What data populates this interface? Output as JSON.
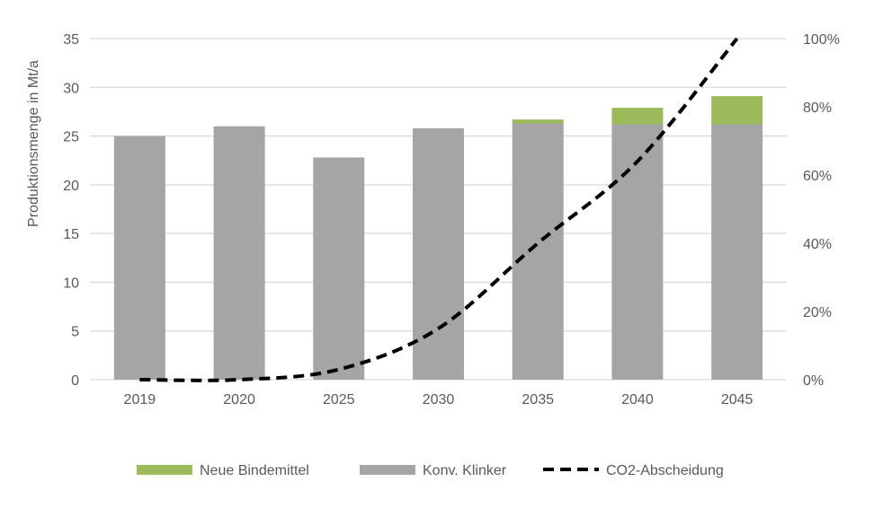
{
  "chart_data": {
    "type": "bar",
    "stacked": true,
    "categories": [
      "2019",
      "2020",
      "2025",
      "2030",
      "2035",
      "2040",
      "2045"
    ],
    "series": [
      {
        "name": "Konv. Klinker",
        "axis": "left",
        "type": "bar",
        "color": "#a5a5a5",
        "values": [
          25,
          26,
          22.8,
          25.8,
          26.3,
          26.2,
          26.2
        ]
      },
      {
        "name": "Neue Bindemittel",
        "axis": "left",
        "type": "bar",
        "color": "#9bbb59",
        "values": [
          0,
          0,
          0,
          0,
          0.4,
          1.7,
          2.9
        ]
      },
      {
        "name": "CO2-Abscheidung",
        "axis": "right",
        "type": "line",
        "style": "dashed",
        "color": "#000000",
        "values": [
          0,
          0,
          3,
          15,
          40,
          64,
          100
        ]
      }
    ],
    "ylabel": "Produktionsmenge in Mt/a",
    "ylim": [
      0,
      35
    ],
    "yticks": [
      "0",
      "5",
      "10",
      "15",
      "20",
      "25",
      "30",
      "35"
    ],
    "y2lim": [
      0,
      100
    ],
    "y2ticks": [
      "0%",
      "20%",
      "40%",
      "60%",
      "80%",
      "100%"
    ],
    "legend_order": [
      "Neue Bindemittel",
      "Konv. Klinker",
      "CO2-Abscheidung"
    ],
    "legend_position": "bottom",
    "grid": true
  }
}
